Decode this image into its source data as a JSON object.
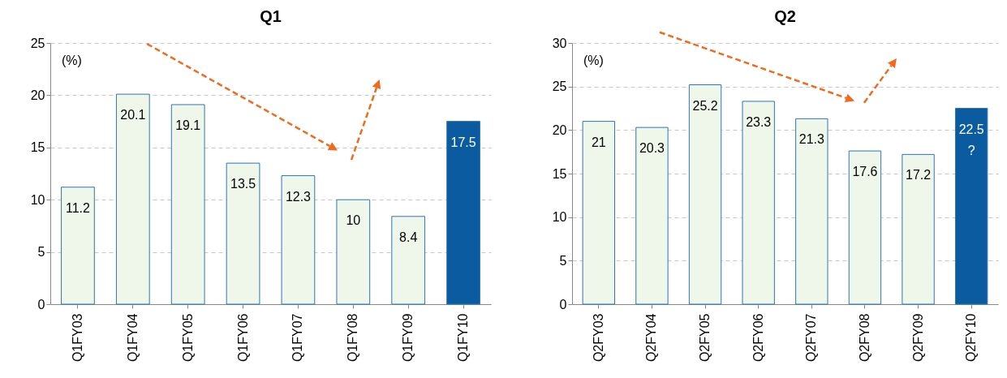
{
  "chart_data": [
    {
      "type": "bar",
      "title": "Q1",
      "categories": [
        "Q1FY03",
        "Q1FY04",
        "Q1FY05",
        "Q1FY06",
        "Q1FY07",
        "Q1FY08",
        "Q1FY09",
        "Q1FY10"
      ],
      "values": [
        11.2,
        20.1,
        19.1,
        13.5,
        12.3,
        10,
        8.4,
        17.5
      ],
      "colors": [
        "#eef7ea",
        "#eef7ea",
        "#eef7ea",
        "#eef7ea",
        "#eef7ea",
        "#eef7ea",
        "#eef7ea",
        "#0b5ba1"
      ],
      "ylim": [
        0,
        25
      ],
      "yticks": [
        0,
        5,
        10,
        15,
        20,
        25
      ],
      "grid": "y",
      "data_labels": true,
      "annotations": [
        "(%)"
      ]
    },
    {
      "type": "bar",
      "title": "Q2",
      "categories": [
        "Q2FY03",
        "Q2FY04",
        "Q2FY05",
        "Q2FY06",
        "Q2FY07",
        "Q2FY08",
        "Q2FY09",
        "Q2FY10"
      ],
      "values": [
        21,
        20.3,
        25.2,
        23.3,
        21.3,
        17.6,
        17.2,
        22.5
      ],
      "colors": [
        "#eef7ea",
        "#eef7ea",
        "#eef7ea",
        "#eef7ea",
        "#eef7ea",
        "#eef7ea",
        "#eef7ea",
        "#0b5ba1"
      ],
      "ylim": [
        0,
        30
      ],
      "yticks": [
        0,
        5,
        10,
        15,
        20,
        25,
        30
      ],
      "grid": "y",
      "data_labels": true,
      "annotations": [
        "(%)",
        {
          "text": "?",
          "x": "Q2FY10",
          "y": 22.5
        }
      ]
    }
  ]
}
